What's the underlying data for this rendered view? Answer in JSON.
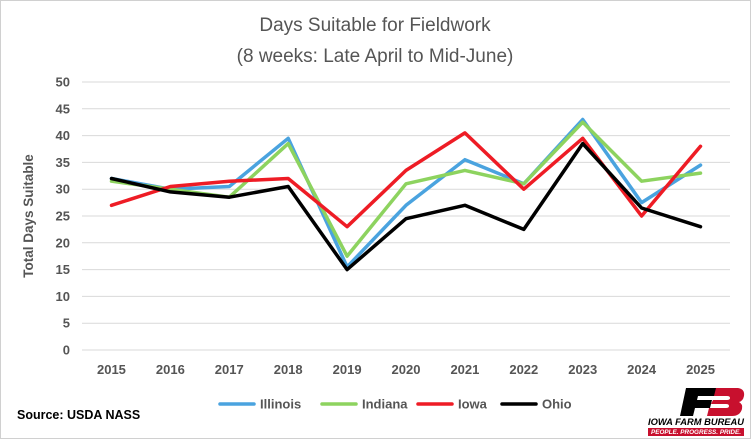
{
  "chart_data": {
    "type": "line",
    "title_line1": "Days Suitable for Fieldwork",
    "title_line2": "(8 weeks: Late April to Mid-June)",
    "xlabel": "",
    "ylabel": "Total Days Suitable",
    "categories": [
      "2015",
      "2016",
      "2017",
      "2018",
      "2019",
      "2020",
      "2021",
      "2022",
      "2023",
      "2024",
      "2025"
    ],
    "ylim": [
      0,
      50
    ],
    "yticks": [
      "0",
      "5",
      "10",
      "15",
      "20",
      "25",
      "30",
      "35",
      "40",
      "45",
      "50"
    ],
    "grid": true,
    "legend_position": "bottom",
    "series": [
      {
        "name": "Illinois",
        "color": "#4aa3df",
        "values": [
          32.0,
          30.0,
          30.5,
          39.5,
          15.5,
          27.0,
          35.5,
          31.0,
          43.0,
          27.5,
          34.5
        ]
      },
      {
        "name": "Indiana",
        "color": "#8dd35f",
        "values": [
          31.5,
          30.0,
          28.5,
          38.5,
          17.5,
          31.0,
          33.5,
          31.0,
          42.5,
          31.5,
          33.0
        ]
      },
      {
        "name": "Iowa",
        "color": "#ee1c25",
        "values": [
          27.0,
          30.5,
          31.5,
          32.0,
          23.0,
          33.5,
          40.5,
          30.0,
          39.5,
          25.0,
          38.0
        ]
      },
      {
        "name": "Ohio",
        "color": "#000000",
        "values": [
          32.0,
          29.5,
          28.5,
          30.5,
          15.0,
          24.5,
          27.0,
          22.5,
          38.5,
          26.5,
          23.0
        ]
      }
    ]
  },
  "source": "Source: USDA NASS",
  "logo": {
    "name": "IOWA FARM BUREAU",
    "tagline": "PEOPLE. PROGRESS. PRIDE.",
    "color": "#c8102e"
  }
}
